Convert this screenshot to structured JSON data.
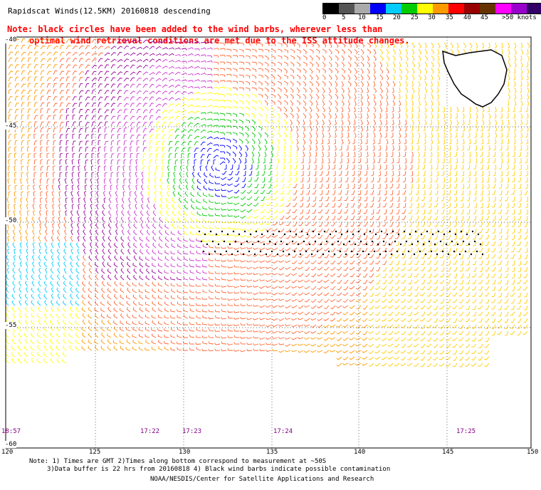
{
  "title": "Rapidscat Winds(12.5KM) 20160818 descending",
  "note_line1": "Note: black circles have been added to the wind barbs, wherever less than",
  "note_line2": "optimal wind retrieval conditions are met due to the ISS attitude changes.",
  "colorbar": {
    "labels": [
      "0",
      "5",
      "10",
      "15",
      "20",
      "25",
      "30",
      "35",
      "40",
      "45",
      ">50 knots"
    ],
    "colors": [
      "#000000",
      "#555555",
      "#aaaaaa",
      "#0000ff",
      "#00ccff",
      "#00cc00",
      "#ffff00",
      "#ff9900",
      "#ff0000",
      "#990000",
      "#663300",
      "#ff00ff",
      "#9900cc",
      "#330066"
    ]
  },
  "latitudes": [
    "-40",
    "-45",
    "-50",
    "-55",
    "-60"
  ],
  "longitudes": [
    "120",
    "125",
    "130",
    "135",
    "140",
    "145",
    "150"
  ],
  "pass_times": [
    "18:57",
    "17:22",
    "17:23",
    "17:24",
    "17:25"
  ],
  "footer": {
    "line1": "Note: 1) Times are GMT 2)Times along bottom correspond to measurement at ~50S",
    "line2": "3)Data buffer is 22 hrs from 20160818 4) Black wind barbs indicate possible contamination",
    "line3": "NOAA/NESDIS/Center for Satellite Applications and Research"
  },
  "map": {
    "lon_range": [
      120,
      150
    ],
    "lat_range": [
      -60,
      -40
    ],
    "land": "Tasmania"
  }
}
